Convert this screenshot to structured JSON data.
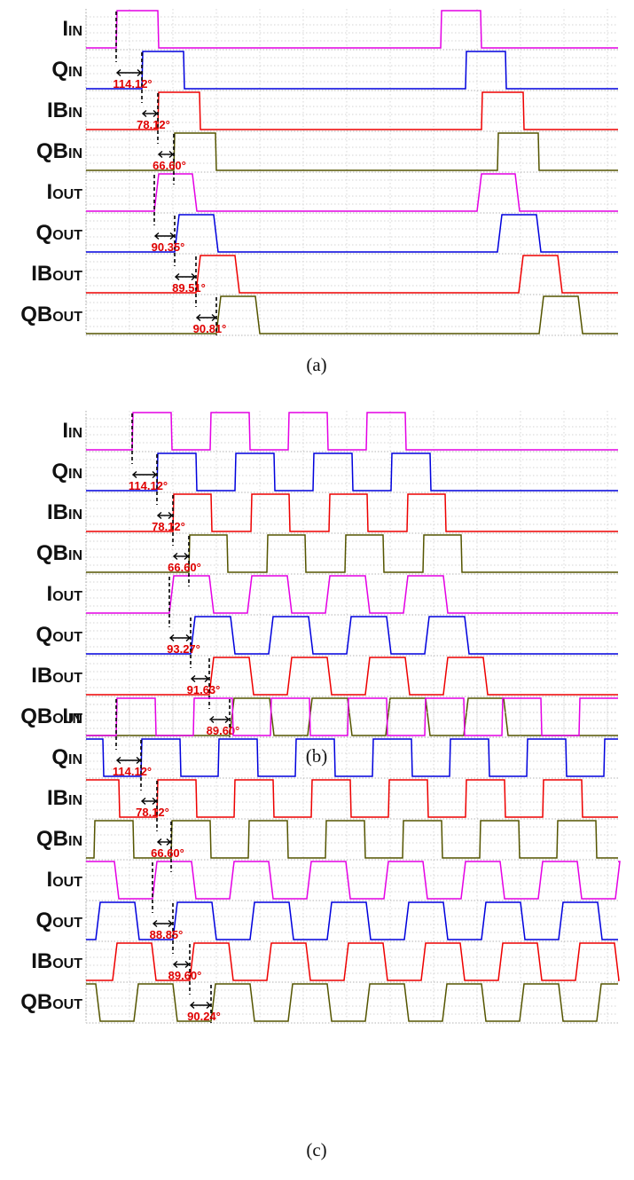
{
  "signals": [
    {
      "base": "I",
      "sub": "IN",
      "color": "#e400e4"
    },
    {
      "base": "Q",
      "sub": "IN",
      "color": "#0000dd"
    },
    {
      "base": "IB",
      "sub": "IN",
      "color": "#ee0000"
    },
    {
      "base": "QB",
      "sub": "IN",
      "color": "#555500"
    },
    {
      "base": "I",
      "sub": "OUT",
      "color": "#e400e4"
    },
    {
      "base": "Q",
      "sub": "OUT",
      "color": "#0000dd"
    },
    {
      "base": "IB",
      "sub": "OUT",
      "color": "#ee0000"
    },
    {
      "base": "QB",
      "sub": "OUT",
      "color": "#555500"
    }
  ],
  "annotation_color": "#e00000",
  "panels": [
    {
      "caption": "(a)",
      "phases": [
        "114.12°",
        "78.12°",
        "66.60°",
        "90.35°",
        "89.51°",
        "90.81°"
      ]
    },
    {
      "caption": "(b)",
      "phases": [
        "114.12°",
        "78.12°",
        "66.60°",
        "93.27°",
        "91.63°",
        "89.60°"
      ]
    },
    {
      "caption": "(c)",
      "phases": [
        "114.12°",
        "78.12°",
        "66.60°",
        "88.85°",
        "89.60°",
        "90.24°"
      ]
    }
  ]
}
